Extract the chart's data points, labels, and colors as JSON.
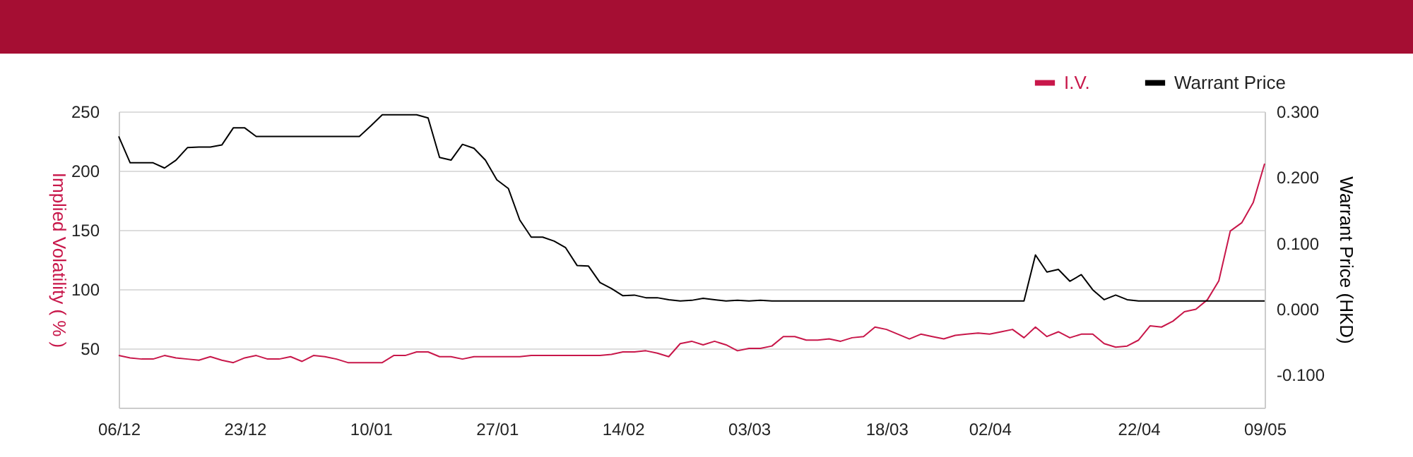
{
  "chart_data": {
    "type": "line",
    "categories": [
      "06/12",
      null,
      null,
      null,
      null,
      null,
      null,
      null,
      null,
      null,
      null,
      "23/12",
      null,
      null,
      null,
      null,
      null,
      null,
      null,
      null,
      null,
      null,
      "10/01",
      null,
      null,
      null,
      null,
      null,
      null,
      null,
      null,
      null,
      null,
      "27/01",
      null,
      null,
      null,
      null,
      null,
      null,
      null,
      null,
      null,
      null,
      "14/02",
      null,
      null,
      null,
      null,
      null,
      null,
      null,
      null,
      null,
      null,
      "03/03",
      null,
      null,
      null,
      null,
      null,
      null,
      null,
      null,
      null,
      null,
      null,
      "18/03",
      null,
      null,
      null,
      null,
      null,
      null,
      null,
      null,
      "02/04",
      null,
      null,
      null,
      null,
      null,
      null,
      null,
      null,
      null,
      null,
      null,
      null,
      "22/04",
      null,
      null,
      null,
      null,
      null,
      null,
      null,
      null,
      null,
      null,
      "09/05"
    ],
    "series": [
      {
        "name": "I.V.",
        "color": "#c8174a",
        "values": [
          44,
          42,
          41,
          41,
          44,
          42,
          41,
          40,
          43,
          40,
          38,
          42,
          44,
          41,
          41,
          43,
          39,
          44,
          43,
          41,
          38,
          38,
          38,
          38,
          44,
          44,
          47,
          47,
          43,
          43,
          41,
          43,
          43,
          43,
          43,
          43,
          44,
          44,
          44,
          44,
          44,
          44,
          44,
          45,
          47,
          47,
          48,
          46,
          43,
          54,
          56,
          53,
          56,
          53,
          48,
          50,
          50,
          52,
          60,
          60,
          57,
          57,
          58,
          56,
          59,
          60,
          68,
          66,
          62,
          58,
          62,
          60,
          58,
          61,
          62,
          63,
          62,
          64,
          66,
          59,
          68,
          60,
          64,
          59,
          62,
          62,
          54,
          51,
          52,
          57,
          69,
          68,
          73,
          81,
          83,
          91,
          107,
          149,
          156,
          173,
          206
        ]
      },
      {
        "name": "Warrant Price",
        "color": "#000000",
        "axis": "y2",
        "values": [
          0.262,
          0.222,
          0.222,
          0.222,
          0.214,
          0.226,
          0.245,
          0.246,
          0.246,
          0.249,
          0.275,
          0.275,
          0.262,
          0.262,
          0.262,
          0.262,
          0.262,
          0.262,
          0.262,
          0.262,
          0.262,
          0.262,
          0.278,
          0.295,
          0.295,
          0.295,
          0.295,
          0.29,
          0.23,
          0.226,
          0.25,
          0.244,
          0.226,
          0.196,
          0.183,
          0.135,
          0.109,
          0.109,
          0.103,
          0.093,
          0.066,
          0.065,
          0.04,
          0.031,
          0.02,
          0.021,
          0.017,
          0.017,
          0.014,
          0.012,
          0.013,
          0.016,
          0.014,
          0.012,
          0.013,
          0.012,
          0.013,
          0.012,
          0.012,
          0.012,
          0.012,
          0.012,
          0.012,
          0.012,
          0.012,
          0.012,
          0.012,
          0.012,
          0.012,
          0.012,
          0.012,
          0.012,
          0.012,
          0.012,
          0.012,
          0.012,
          0.012,
          0.012,
          0.012,
          0.012,
          0.082,
          0.056,
          0.06,
          0.042,
          0.052,
          0.029,
          0.014,
          0.021,
          0.014,
          0.012,
          0.012,
          0.012,
          0.012,
          0.012,
          0.012,
          0.012,
          0.012,
          0.012,
          0.012,
          0.012,
          0.012
        ]
      }
    ],
    "ylabel": "Implied Volatility ( % )",
    "y2label": "Warrant Price (HKD)",
    "ylim": [
      0,
      250
    ],
    "yticks": [
      50,
      100,
      150,
      200,
      250
    ],
    "y2lim": [
      -0.15,
      0.3
    ],
    "y2ticks": [
      {
        "value": -0.1,
        "label": "-0.100"
      },
      {
        "value": 0,
        "label": "0.000"
      },
      {
        "value": 0.1,
        "label": "0.100"
      },
      {
        "value": 0.2,
        "label": "0.200"
      },
      {
        "value": 0.3,
        "label": "0.300"
      }
    ],
    "grid": "y",
    "legend": "top right"
  }
}
